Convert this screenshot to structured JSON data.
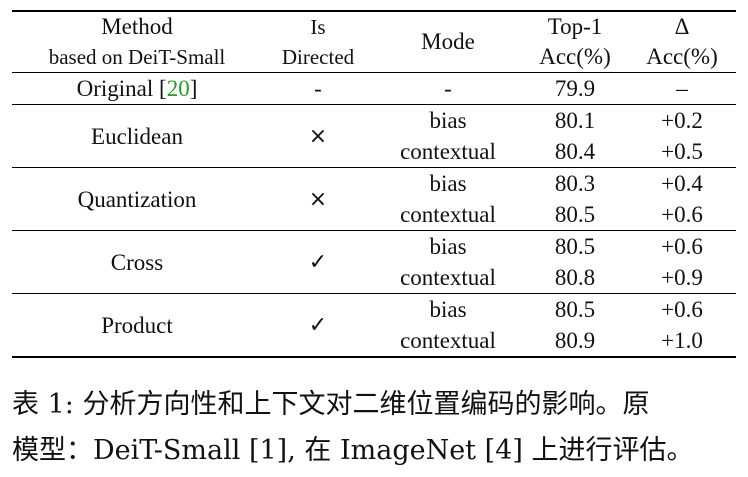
{
  "table": {
    "headers": {
      "method_line1": "Method",
      "method_line2": "based on DeiT-Small",
      "directed_line1": "Is",
      "directed_line2": "Directed",
      "mode": "Mode",
      "top1_line1": "Top-1",
      "top1_line2": "Acc(%)",
      "delta_line1": "Δ",
      "delta_line2": "Acc(%)"
    },
    "original": {
      "method": "Original [",
      "cite": "20",
      "method_end": "]",
      "directed": "-",
      "mode": "-",
      "acc": "79.9",
      "delta": "–"
    },
    "groups": [
      {
        "method": "Euclidean",
        "directed": "×",
        "rows": [
          {
            "mode": "bias",
            "acc": "80.1",
            "delta": "+0.2"
          },
          {
            "mode": "contextual",
            "acc": "80.4",
            "delta": "+0.5"
          }
        ]
      },
      {
        "method": "Quantization",
        "directed": "×",
        "rows": [
          {
            "mode": "bias",
            "acc": "80.3",
            "delta": "+0.4"
          },
          {
            "mode": "contextual",
            "acc": "80.5",
            "delta": "+0.6"
          }
        ]
      },
      {
        "method": "Cross",
        "directed": "✓",
        "rows": [
          {
            "mode": "bias",
            "acc": "80.5",
            "delta": "+0.6"
          },
          {
            "mode": "contextual",
            "acc": "80.8",
            "delta": "+0.9"
          }
        ]
      },
      {
        "method": "Product",
        "directed": "✓",
        "rows": [
          {
            "mode": "bias",
            "acc": "80.5",
            "delta": "+0.6"
          },
          {
            "mode": "contextual",
            "acc": "80.9",
            "delta": "+1.0"
          }
        ]
      }
    ]
  },
  "caption": {
    "line1": "表 1: 分析方向性和上下文对二维位置编码的影响。原",
    "line2": "模型：DeiT-Small [1], 在 ImageNet [4] 上进行评估。"
  }
}
